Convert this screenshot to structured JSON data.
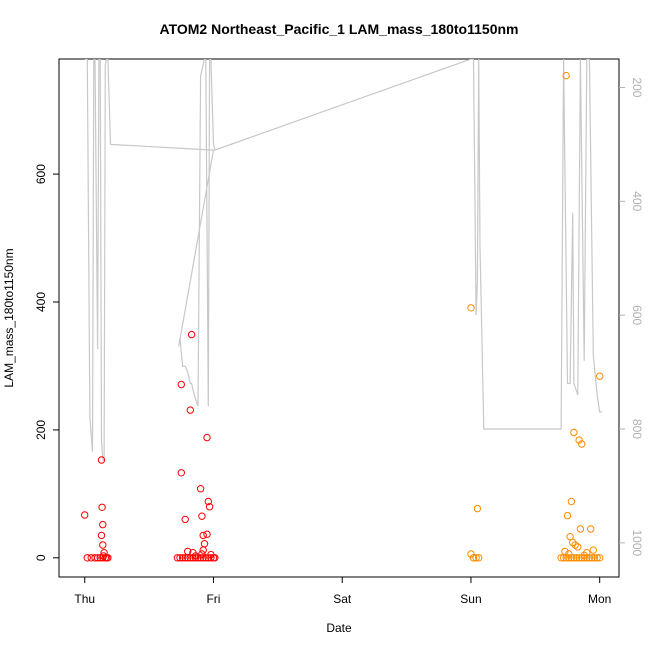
{
  "chart_data": {
    "type": "scatter",
    "title": "ATOM2 Northeast_Pacific_1 LAM_mass_180to1150nm",
    "xlabel": "Date",
    "ylabel": "LAM_mass_180to1150nm",
    "x_ticks": [
      "Thu",
      "Fri",
      "Sat",
      "Sun",
      "Mon"
    ],
    "x_tick_positions_days": [
      0,
      1,
      2,
      3,
      4
    ],
    "xlim_days": [
      -0.2,
      4.15
    ],
    "ylim": [
      -30,
      780
    ],
    "y_ticks": [
      0,
      200,
      400,
      600
    ],
    "y2_ticks": [
      200,
      400,
      600,
      800,
      1000
    ],
    "y2lim": [
      1060,
      150
    ],
    "grid": false,
    "colors": {
      "series1": "#ff0000",
      "series2": "#ff8c00",
      "altitude": "#c8c8c8"
    },
    "series": [
      {
        "color_key": "series1",
        "x_days": [
          0.0,
          0.02,
          0.05,
          0.08,
          0.1,
          0.12,
          0.14,
          0.16,
          0.17,
          0.18,
          0.13,
          0.135,
          0.14,
          0.13,
          0.14,
          0.15,
          0.145,
          0.72,
          0.74,
          0.76,
          0.78,
          0.8,
          0.82,
          0.84,
          0.86,
          0.88,
          0.9,
          0.92,
          0.94,
          0.96,
          0.98,
          1.0,
          1.01,
          0.75,
          0.75,
          0.78,
          0.83,
          0.82,
          0.9,
          0.91,
          0.92,
          0.95,
          0.96,
          0.95,
          0.97,
          0.98,
          0.93,
          0.92,
          0.91,
          0.8,
          0.84,
          0.86
        ],
        "y": [
          67,
          0,
          0,
          0,
          0,
          0,
          0,
          0,
          0,
          0,
          153,
          79,
          52,
          35,
          20,
          8,
          3,
          0,
          0,
          0,
          0,
          0,
          0,
          0,
          0,
          0,
          0,
          0,
          0,
          0,
          0,
          0,
          0,
          271,
          133,
          60,
          349,
          231,
          108,
          65,
          35,
          188,
          88,
          37,
          80,
          5,
          22,
          12,
          6,
          10,
          8,
          3
        ]
      },
      {
        "color_key": "series2",
        "x_days": [
          3.0,
          3.02,
          3.04,
          3.06,
          3.0,
          3.02,
          3.05,
          3.7,
          3.72,
          3.74,
          3.76,
          3.78,
          3.8,
          3.82,
          3.84,
          3.86,
          3.88,
          3.9,
          3.92,
          3.94,
          3.96,
          3.98,
          4.0,
          3.74,
          3.75,
          3.78,
          3.8,
          3.84,
          3.86,
          3.77,
          3.79,
          3.81,
          3.83,
          3.85,
          3.95,
          4.0,
          3.93,
          3.73,
          3.76,
          3.9,
          3.88
        ],
        "y": [
          391,
          0,
          0,
          0,
          6,
          0,
          77,
          0,
          0,
          0,
          0,
          0,
          0,
          0,
          0,
          0,
          0,
          0,
          0,
          0,
          0,
          0,
          0,
          754,
          66,
          88,
          196,
          184,
          178,
          33,
          24,
          20,
          17,
          45,
          12,
          284,
          45,
          10,
          6,
          8,
          4
        ]
      }
    ],
    "altitude_trace": {
      "x_days": [
        0.0,
        0.02,
        0.04,
        0.06,
        0.07,
        0.08,
        0.1,
        0.11,
        0.12,
        0.13,
        0.14,
        0.15,
        0.16,
        0.17,
        0.18,
        0.2,
        1.0,
        0.73,
        0.74,
        0.76,
        0.78,
        0.8,
        0.82,
        0.83,
        0.85,
        0.88,
        0.9,
        0.93,
        0.94,
        0.96,
        0.97,
        0.98,
        1.0,
        1.01,
        3.0,
        3.02,
        3.04,
        3.05,
        3.06,
        3.07,
        3.1,
        3.7,
        3.72,
        3.75,
        3.77,
        3.79,
        3.8,
        3.83,
        3.85,
        3.88,
        3.9,
        3.92,
        3.95,
        3.98,
        4.0,
        4.02
      ],
      "altitude_m": [
        150,
        150,
        780,
        840,
        150,
        150,
        660,
        150,
        150,
        820,
        855,
        855,
        160,
        150,
        150,
        300,
        310,
        655,
        640,
        690,
        690,
        700,
        720,
        720,
        740,
        760,
        180,
        150,
        150,
        760,
        150,
        150,
        300,
        310,
        150,
        150,
        600,
        540,
        150,
        480,
        800,
        800,
        150,
        720,
        720,
        420,
        720,
        740,
        150,
        680,
        150,
        150,
        670,
        740,
        770,
        770
      ]
    }
  }
}
